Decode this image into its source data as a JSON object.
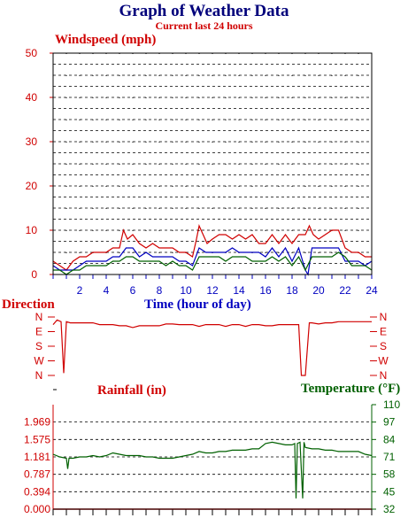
{
  "header": {
    "title": "Graph of Weather Data",
    "subtitle": "Current last 24 hours"
  },
  "colors": {
    "title": "#00007b",
    "accent_red": "#d00000",
    "accent_blue": "#0000c0",
    "accent_green": "#006000"
  },
  "chart_data": [
    {
      "type": "line",
      "ylabel": "Windspeed (mph)",
      "xlabel": "Time (hour of day)",
      "xlim": [
        0,
        24
      ],
      "ylim": [
        0,
        50
      ],
      "xticks": [
        "2",
        "4",
        "6",
        "8",
        "10",
        "12",
        "14",
        "16",
        "18",
        "20",
        "22",
        "24"
      ],
      "yticks": [
        "0",
        "10",
        "20",
        "30",
        "40",
        "50"
      ],
      "grid": true,
      "series": [
        {
          "color": "#d00000",
          "x": [
            0,
            0.5,
            1,
            1.5,
            2,
            2.5,
            3,
            3.5,
            4,
            4.5,
            5,
            5.3,
            5.6,
            6,
            6.5,
            7,
            7.5,
            8,
            8.5,
            9,
            9.5,
            10,
            10.5,
            10.8,
            11,
            11.3,
            11.6,
            12,
            12.5,
            13,
            13.5,
            14,
            14.5,
            15,
            15.5,
            16,
            16.5,
            17,
            17.5,
            18,
            18.5,
            19,
            19.3,
            19.6,
            20,
            20.5,
            21,
            21.5,
            22,
            22.5,
            23,
            23.5,
            24
          ],
          "y": [
            3,
            2,
            1,
            3,
            4,
            4,
            5,
            5,
            5,
            6,
            6,
            10,
            8,
            9,
            7,
            6,
            7,
            6,
            6,
            6,
            5,
            5,
            4,
            8,
            11,
            9,
            7,
            8,
            9,
            9,
            8,
            9,
            8,
            9,
            7,
            7,
            9,
            7,
            9,
            7,
            9,
            9,
            11,
            9,
            8,
            9,
            10,
            10,
            6,
            5,
            5,
            4,
            4
          ]
        },
        {
          "color": "#0000c0",
          "x": [
            0,
            0.5,
            1,
            1.5,
            2,
            2.5,
            3,
            3.5,
            4,
            4.5,
            5,
            5.5,
            6,
            6.5,
            7,
            7.5,
            8,
            8.5,
            9,
            9.5,
            10,
            10.5,
            11,
            11.5,
            12,
            12.5,
            13,
            13.5,
            14,
            14.5,
            15,
            15.5,
            16,
            16.5,
            17,
            17.5,
            18,
            18.5,
            19,
            19.2,
            19.5,
            20,
            20.5,
            21,
            21.5,
            22,
            22.5,
            23,
            23.5,
            24
          ],
          "y": [
            2,
            1,
            1,
            1,
            2,
            3,
            3,
            3,
            3,
            4,
            4,
            6,
            6,
            4,
            5,
            4,
            4,
            4,
            4,
            3,
            3,
            2,
            6,
            5,
            5,
            5,
            5,
            6,
            5,
            5,
            5,
            5,
            4,
            6,
            4,
            6,
            3,
            6,
            1,
            0,
            6,
            6,
            6,
            6,
            6,
            3,
            3,
            3,
            2,
            3
          ]
        },
        {
          "color": "#006000",
          "x": [
            0,
            0.5,
            1,
            1.5,
            2,
            2.5,
            3,
            3.5,
            4,
            4.5,
            5,
            5.5,
            6,
            6.5,
            7,
            7.5,
            8,
            8.5,
            9,
            9.5,
            10,
            10.5,
            11,
            11.5,
            12,
            12.5,
            13,
            13.5,
            14,
            14.5,
            15,
            15.5,
            16,
            16.5,
            17,
            17.5,
            18,
            18.5,
            19,
            19.5,
            20,
            20.5,
            21,
            21.5,
            22,
            22.5,
            23,
            23.5,
            24
          ],
          "y": [
            1,
            1,
            0,
            1,
            1,
            2,
            2,
            2,
            2,
            3,
            3,
            4,
            4,
            3,
            3,
            3,
            3,
            2,
            3,
            2,
            2,
            1,
            4,
            4,
            4,
            4,
            3,
            4,
            4,
            4,
            3,
            3,
            3,
            4,
            3,
            4,
            2,
            4,
            1,
            4,
            4,
            4,
            4,
            5,
            4,
            2,
            2,
            2,
            1
          ]
        }
      ]
    },
    {
      "type": "line",
      "ylabel": "Direction",
      "yticks": [
        "N",
        "W",
        "S",
        "E",
        "N"
      ],
      "xlim": [
        0,
        24
      ],
      "series": [
        {
          "color": "#d00000",
          "x": [
            0,
            0.3,
            0.6,
            0.8,
            1,
            1.3,
            1.6,
            2,
            2.5,
            3,
            3.5,
            4,
            4.5,
            5,
            5.5,
            6,
            6.5,
            7,
            7.5,
            8,
            8.5,
            9,
            9.5,
            10,
            10.5,
            11,
            11.5,
            12,
            12.5,
            13,
            13.5,
            14,
            14.5,
            15,
            15.5,
            16,
            16.5,
            17,
            17.5,
            18,
            18.5,
            18.7,
            19,
            19.3,
            19.5,
            20,
            20.5,
            21,
            21.5,
            22,
            22.5,
            23,
            23.5,
            24
          ],
          "y": [
            87,
            95,
            92,
            4,
            92,
            90,
            90,
            90,
            90,
            90,
            87,
            87,
            87,
            85,
            85,
            82,
            85,
            85,
            85,
            85,
            88,
            88,
            87,
            87,
            87,
            84,
            87,
            87,
            87,
            84,
            87,
            87,
            84,
            87,
            87,
            85,
            85,
            87,
            87,
            87,
            87,
            0,
            0,
            90,
            90,
            88,
            90,
            90,
            92,
            92,
            92,
            92,
            92,
            92
          ]
        }
      ]
    },
    {
      "type": "line",
      "ylabel": "Rainfall (in)",
      "ylim": [
        0,
        2.362
      ],
      "yticks": [
        "0.000",
        "0.394",
        "0.787",
        "1.181",
        "1.575",
        "1.969"
      ],
      "xlim": [
        0,
        24
      ],
      "series": [
        {
          "color": "#d00000",
          "x": [
            0,
            24
          ],
          "y": [
            0,
            0
          ]
        }
      ]
    },
    {
      "type": "line",
      "ylabel": "Temperature (°F)",
      "ylim": [
        32,
        110
      ],
      "yticks": [
        "32",
        "45",
        "58",
        "71",
        "84",
        "97",
        "110"
      ],
      "xlim": [
        0,
        24
      ],
      "series": [
        {
          "color": "#006000",
          "x": [
            0,
            0.5,
            1,
            1.1,
            1.2,
            1.5,
            2,
            2.5,
            3,
            3.5,
            4,
            4.5,
            5,
            5.5,
            6,
            6.5,
            7,
            7.5,
            8,
            8.5,
            9,
            9.5,
            10,
            10.5,
            11,
            11.5,
            12,
            12.5,
            13,
            13.5,
            14,
            14.5,
            15,
            15.5,
            16,
            16.5,
            17,
            17.5,
            18,
            18.2,
            18.3,
            18.4,
            18.6,
            18.8,
            18.9,
            19,
            19.5,
            20,
            20.5,
            21,
            21.5,
            22,
            22.5,
            23,
            23.5,
            24
          ],
          "y": [
            73,
            71,
            70,
            62,
            70,
            70,
            71,
            71,
            72,
            71,
            72,
            74,
            73,
            72,
            72,
            72,
            71,
            71,
            70,
            70,
            70,
            71,
            72,
            73,
            75,
            74,
            74,
            75,
            75,
            76,
            76,
            76,
            77,
            77,
            81,
            82,
            81,
            80,
            80,
            81,
            40,
            81,
            82,
            40,
            82,
            78,
            77,
            77,
            76,
            76,
            75,
            75,
            75,
            75,
            73,
            72
          ]
        }
      ]
    }
  ]
}
